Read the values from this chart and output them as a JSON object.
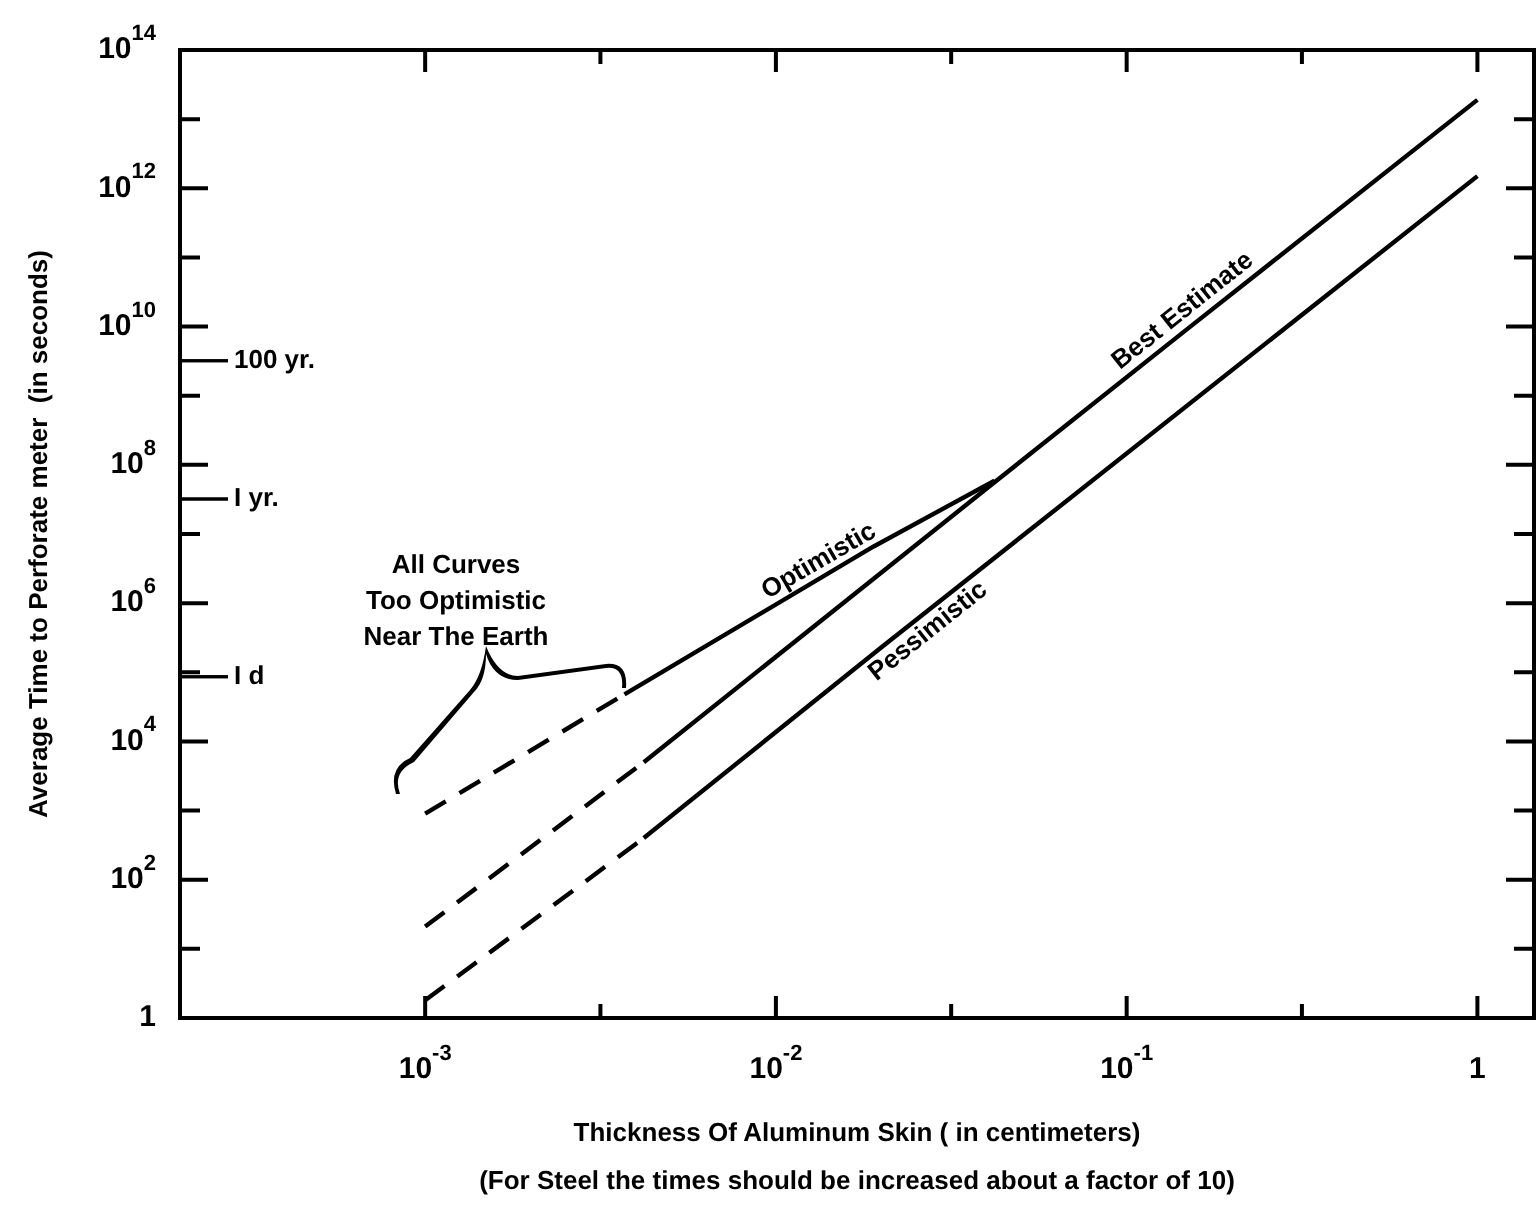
{
  "chart_data": {
    "type": "line",
    "xlabel": "Thickness Of Aluminum Skin ( in centimeters)",
    "ylabel": "Average Time to Perforate meter  (in seconds)",
    "log": "xy",
    "xlim": [
      0.0002,
      1.45
    ],
    "ylim": [
      1,
      100000000000000.0
    ],
    "xticks": [
      {
        "value": 0.001,
        "label": "10$^{-3}$"
      },
      {
        "value": 0.00316,
        "label": null
      },
      {
        "value": 0.01,
        "label": "10$^{-2}$"
      },
      {
        "value": 0.0316,
        "label": null
      },
      {
        "value": 0.1,
        "label": "10$^{-1}$"
      },
      {
        "value": 0.316,
        "label": null
      },
      {
        "value": 1,
        "label": "1"
      }
    ],
    "yticks": [
      1,
      {
        "value": 10,
        "label": null
      },
      {
        "value": 100,
        "label": "10$^{2}$"
      },
      {
        "value": 1000,
        "label": null
      },
      {
        "value": 10000,
        "label": "10$^{4}$"
      },
      {
        "value": 100000,
        "label": null
      },
      {
        "value": 1000000,
        "label": "10$^{6}$"
      },
      {
        "value": 10000000,
        "label": null
      },
      {
        "value": 100000000,
        "label": "10$^{8}$"
      },
      {
        "value": 1000000000,
        "label": null
      },
      {
        "value": 10000000000,
        "label": "10$^{10}$"
      },
      {
        "value": 100000000000,
        "label": null
      },
      {
        "value": 1000000000000,
        "label": "10$^{12}$"
      },
      {
        "value": 10000000000000,
        "label": null
      },
      {
        "value": 100000000000000,
        "label": "10$^{14}$"
      }
    ],
    "grid": false,
    "legend": false,
    "marker": "none",
    "ref_lines": [
      {
        "axis": "y",
        "value": 3200000000,
        "label": "100 yr."
      },
      {
        "axis": "y",
        "value": 32000000,
        "label": "I yr."
      },
      {
        "axis": "y",
        "value": 86000,
        "label": "I d"
      }
    ],
    "annotations": [
      "All Curves\nToo Optimistic\nNear The Earth",
      "(For Steel the times should be increased about a factor of 10)"
    ],
    "series": [
      {
        "color": "#000000",
        "line_style": "dashed",
        "x": [
          0.001,
          0.0037
        ],
        "values": [
          900,
          48000
        ]
      },
      {
        "name": "Optimistic",
        "color": "#000000",
        "line_style": "solid",
        "x": [
          0.0037,
          0.019,
          0.042
        ],
        "values": [
          48000,
          6600000,
          59000000
        ]
      },
      {
        "color": "#000000",
        "line_style": "dashed",
        "x": [
          0.001,
          0.0042
        ],
        "values": [
          21,
          5000
        ]
      },
      {
        "name": "Best Estimate",
        "color": "#000000",
        "line_style": "solid",
        "x": [
          0.0042,
          0.042,
          0.15,
          1
        ],
        "values": [
          5000,
          56000000,
          9500000000,
          19000000000000
        ]
      },
      {
        "color": "#000000",
        "line_style": "dashed",
        "x": [
          0.001,
          0.0042
        ],
        "values": [
          1.8,
          400
        ]
      },
      {
        "name": "Pessimistic",
        "color": "#000000",
        "line_style": "solid",
        "x": [
          0.0042,
          0.02,
          1
        ],
        "values": [
          400,
          230000,
          1500000000000
        ]
      }
    ]
  }
}
